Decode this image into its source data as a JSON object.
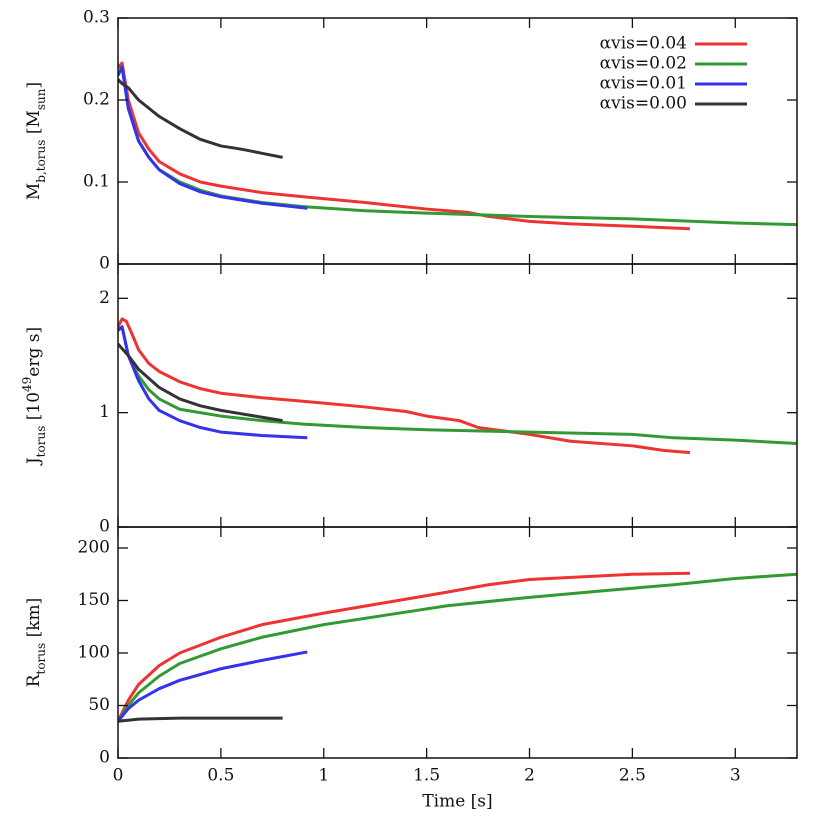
{
  "chart_data": [
    {
      "type": "line",
      "xlim": [
        0,
        3.3
      ],
      "xticks": [
        0,
        0.5,
        1,
        1.5,
        2,
        2.5,
        3
      ],
      "ylim": [
        0,
        0.3
      ],
      "yticks": [
        0,
        0.1,
        0.2,
        0.3
      ],
      "legend": "upper right",
      "ylabel": [
        {
          "text": "M"
        },
        {
          "text": "b,torus",
          "shift": "sub"
        },
        {
          "text": " [M"
        },
        {
          "text": "sun",
          "shift": "sub"
        },
        {
          "text": "]"
        }
      ],
      "series": [
        {
          "name": "αvis=0.04",
          "color": "#ee3333",
          "x": [
            0,
            0.02,
            0.05,
            0.1,
            0.15,
            0.2,
            0.3,
            0.4,
            0.5,
            0.7,
            0.9,
            1.2,
            1.5,
            1.7,
            1.8,
            2.0,
            2.2,
            2.5,
            2.78
          ],
          "values": [
            0.24,
            0.245,
            0.2,
            0.16,
            0.14,
            0.125,
            0.11,
            0.1,
            0.095,
            0.087,
            0.082,
            0.075,
            0.067,
            0.063,
            0.058,
            0.052,
            0.049,
            0.046,
            0.043
          ]
        },
        {
          "name": "αvis=0.02",
          "color": "#339933",
          "x": [
            0,
            0.02,
            0.05,
            0.1,
            0.15,
            0.2,
            0.3,
            0.4,
            0.5,
            0.7,
            0.9,
            1.2,
            1.5,
            2.0,
            2.5,
            3.0,
            3.3
          ],
          "values": [
            0.24,
            0.24,
            0.19,
            0.15,
            0.13,
            0.115,
            0.1,
            0.09,
            0.083,
            0.075,
            0.07,
            0.065,
            0.062,
            0.058,
            0.055,
            0.05,
            0.048
          ]
        },
        {
          "name": "αvis=0.01",
          "color": "#3333ee",
          "x": [
            0,
            0.02,
            0.05,
            0.1,
            0.15,
            0.2,
            0.3,
            0.4,
            0.5,
            0.7,
            0.92
          ],
          "values": [
            0.23,
            0.24,
            0.19,
            0.15,
            0.13,
            0.115,
            0.098,
            0.088,
            0.082,
            0.074,
            0.068
          ]
        },
        {
          "name": "αvis=0.00",
          "color": "#333333",
          "x": [
            0,
            0.02,
            0.05,
            0.1,
            0.2,
            0.3,
            0.4,
            0.5,
            0.6,
            0.7,
            0.8
          ],
          "values": [
            0.225,
            0.22,
            0.215,
            0.2,
            0.18,
            0.165,
            0.152,
            0.144,
            0.14,
            0.135,
            0.13
          ]
        }
      ]
    },
    {
      "type": "line",
      "xlim": [
        0,
        3.3
      ],
      "xticks": [
        0,
        0.5,
        1,
        1.5,
        2,
        2.5,
        3
      ],
      "ylim": [
        0,
        2.3
      ],
      "yticks": [
        0,
        1,
        2
      ],
      "ylabel": [
        {
          "text": "J"
        },
        {
          "text": "torus",
          "shift": "sub"
        },
        {
          "text": " [10"
        },
        {
          "text": "49",
          "shift": "super"
        },
        {
          "text": "erg s]"
        }
      ],
      "series": [
        {
          "color": "#ee3333",
          "x": [
            0,
            0.02,
            0.04,
            0.07,
            0.1,
            0.15,
            0.2,
            0.3,
            0.4,
            0.5,
            0.7,
            0.9,
            1.2,
            1.4,
            1.5,
            1.66,
            1.75,
            2.0,
            2.2,
            2.5,
            2.65,
            2.78
          ],
          "values": [
            1.75,
            1.82,
            1.8,
            1.68,
            1.55,
            1.43,
            1.36,
            1.27,
            1.21,
            1.17,
            1.13,
            1.1,
            1.05,
            1.01,
            0.97,
            0.93,
            0.87,
            0.81,
            0.75,
            0.71,
            0.67,
            0.65
          ]
        },
        {
          "color": "#339933",
          "x": [
            0,
            0.02,
            0.05,
            0.1,
            0.15,
            0.2,
            0.3,
            0.5,
            0.7,
            0.9,
            1.2,
            1.5,
            2.0,
            2.5,
            2.7,
            3.0,
            3.3
          ],
          "values": [
            1.72,
            1.75,
            1.5,
            1.32,
            1.2,
            1.12,
            1.03,
            0.97,
            0.93,
            0.9,
            0.87,
            0.85,
            0.83,
            0.81,
            0.78,
            0.76,
            0.73
          ]
        },
        {
          "color": "#3333ee",
          "x": [
            0,
            0.02,
            0.05,
            0.1,
            0.15,
            0.2,
            0.3,
            0.4,
            0.5,
            0.7,
            0.92
          ],
          "values": [
            1.72,
            1.75,
            1.5,
            1.28,
            1.12,
            1.02,
            0.93,
            0.87,
            0.83,
            0.8,
            0.78
          ]
        },
        {
          "color": "#333333",
          "x": [
            0,
            0.02,
            0.05,
            0.1,
            0.2,
            0.3,
            0.4,
            0.5,
            0.6,
            0.7,
            0.8
          ],
          "values": [
            1.6,
            1.56,
            1.5,
            1.38,
            1.22,
            1.12,
            1.06,
            1.02,
            0.99,
            0.96,
            0.93
          ]
        }
      ]
    },
    {
      "type": "line",
      "xlim": [
        0,
        3.3
      ],
      "xticks": [
        0,
        0.5,
        1,
        1.5,
        2,
        2.5,
        3
      ],
      "show_xticklabels": true,
      "xlabel": "Time [s]",
      "ylim": [
        0,
        220
      ],
      "yticks": [
        0,
        50,
        100,
        150,
        200
      ],
      "ylabel": [
        {
          "text": "R"
        },
        {
          "text": "torus",
          "shift": "sub"
        },
        {
          "text": " [km]"
        }
      ],
      "series": [
        {
          "color": "#ee3333",
          "x": [
            0,
            0.05,
            0.1,
            0.2,
            0.3,
            0.5,
            0.7,
            1.0,
            1.3,
            1.6,
            1.8,
            2.0,
            2.3,
            2.5,
            2.78
          ],
          "values": [
            35,
            55,
            70,
            88,
            100,
            115,
            127,
            138,
            148,
            158,
            165,
            170,
            173,
            175,
            176
          ]
        },
        {
          "color": "#339933",
          "x": [
            0,
            0.05,
            0.1,
            0.2,
            0.3,
            0.5,
            0.7,
            1.0,
            1.3,
            1.6,
            2.0,
            2.4,
            2.7,
            3.0,
            3.3
          ],
          "values": [
            35,
            50,
            62,
            78,
            90,
            104,
            115,
            127,
            136,
            145,
            153,
            160,
            165,
            171,
            175
          ]
        },
        {
          "color": "#3333ee",
          "x": [
            0,
            0.05,
            0.1,
            0.2,
            0.3,
            0.5,
            0.7,
            0.92
          ],
          "values": [
            35,
            47,
            55,
            66,
            74,
            85,
            93,
            101
          ]
        },
        {
          "color": "#333333",
          "x": [
            0,
            0.1,
            0.3,
            0.5,
            0.8
          ],
          "values": [
            35,
            37,
            38,
            38,
            38
          ]
        }
      ]
    }
  ]
}
